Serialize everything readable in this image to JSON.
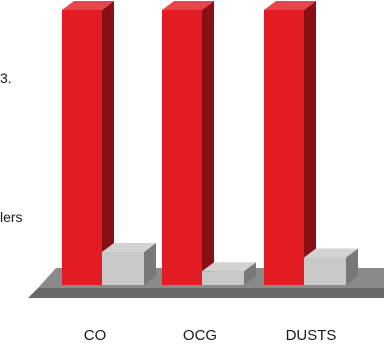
{
  "chart_data": {
    "type": "bar",
    "style": "3d",
    "categories": [
      "CO",
      "OCG",
      "DUSTS"
    ],
    "series": [
      {
        "values": [
          100,
          100,
          100
        ],
        "color": "#e31b23"
      },
      {
        "values": [
          12,
          5,
          10
        ],
        "color": "#c8c8c8"
      }
    ],
    "fragments": [
      "3.",
      "lers"
    ],
    "grid": false,
    "legend": "none",
    "base_color": "#8a8a8a"
  }
}
